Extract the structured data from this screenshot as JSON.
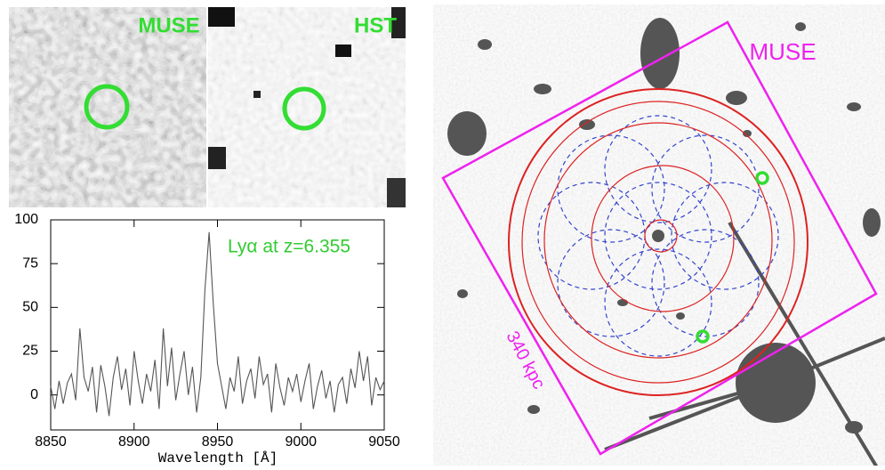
{
  "panels": {
    "muse_label": "MUSE",
    "hst_label": "HST",
    "field_label": "MUSE",
    "scale_label": "340 kpc"
  },
  "chart_data": {
    "type": "line",
    "annotation": "Lyα at z=6.355",
    "xlabel": "Wavelength [Å]",
    "color": "#555555",
    "x": [
      8850,
      8852.5,
      8855,
      8857.5,
      8860,
      8862.5,
      8865,
      8867.5,
      8870,
      8872.5,
      8875,
      8877.5,
      8880,
      8882.5,
      8885,
      8887.5,
      8890,
      8892.5,
      8895,
      8897.5,
      8900,
      8902.5,
      8905,
      8907.5,
      8910,
      8912.5,
      8915,
      8917.5,
      8920,
      8922.5,
      8925,
      8927.5,
      8930,
      8932.5,
      8935,
      8937.5,
      8940,
      8942.5,
      8945,
      8947.5,
      8950,
      8952.5,
      8955,
      8957.5,
      8960,
      8962.5,
      8965,
      8967.5,
      8970,
      8972.5,
      8975,
      8977.5,
      8980,
      8982.5,
      8985,
      8987.5,
      8990,
      8992.5,
      8995,
      8997.5,
      9000,
      9002.5,
      9005,
      9007.5,
      9010,
      9012.5,
      9015,
      9017.5,
      9020,
      9022.5,
      9025,
      9027.5,
      9030,
      9032.5,
      9035,
      9037.5,
      9040,
      9042.5,
      9045,
      9047.5,
      9050
    ],
    "values": [
      5,
      -8,
      8,
      -5,
      7,
      12,
      -3,
      38,
      10,
      2,
      16,
      -10,
      17,
      5,
      -12,
      10,
      22,
      3,
      15,
      -6,
      25,
      8,
      -5,
      12,
      2,
      20,
      -8,
      38,
      5,
      27,
      -3,
      12,
      25,
      0,
      16,
      -10,
      10,
      60,
      93,
      52,
      18,
      5,
      -8,
      10,
      2,
      22,
      -5,
      8,
      15,
      -2,
      22,
      6,
      12,
      -10,
      18,
      4,
      -6,
      10,
      2,
      12,
      -4,
      8,
      18,
      -8,
      5,
      14,
      -2,
      8,
      -10,
      6,
      10,
      -5,
      15,
      4,
      25,
      8,
      22,
      -6,
      10,
      3,
      8
    ],
    "xlim": [
      8850,
      9050
    ],
    "ylim": [
      -20,
      100
    ],
    "xticks": [
      8850,
      8900,
      8950,
      9000,
      9050
    ],
    "yticks": [
      0,
      25,
      50,
      75,
      100
    ]
  }
}
